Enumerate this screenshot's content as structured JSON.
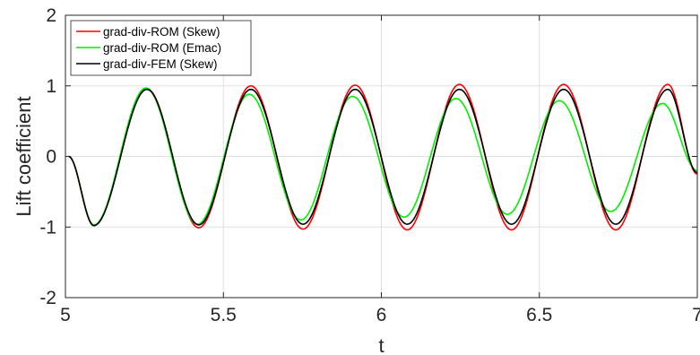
{
  "chart_data": {
    "type": "line",
    "title": "",
    "xlabel": "t",
    "ylabel": "Lift coefficient",
    "xlim": [
      5,
      7
    ],
    "ylim": [
      -2,
      2
    ],
    "xticks": [
      5,
      5.5,
      6,
      6.5,
      7
    ],
    "xtick_labels": [
      "5",
      "5.5",
      "6",
      "6.5",
      "7"
    ],
    "yticks": [
      -2,
      -1,
      0,
      1,
      2
    ],
    "ytick_labels": [
      "-2",
      "-1",
      "0",
      "1",
      "2"
    ],
    "grid": true,
    "legend_position": "top-left",
    "x": [
      5.0,
      5.1,
      5.2,
      5.3,
      5.4,
      5.5,
      5.6,
      5.7,
      5.8,
      5.9,
      6.0,
      6.1,
      6.2,
      6.3,
      6.4,
      6.5,
      6.6,
      6.7,
      6.8,
      6.9,
      7.0
    ],
    "series": [
      {
        "name": "grad-div-ROM (Skew)",
        "color": "#ff0000",
        "description_points": "sinusoid, period ~0.33, growing slightly to amplitude ~1.03",
        "x": [
          5.01,
          5.09,
          5.258,
          5.422,
          5.587,
          5.752,
          5.917,
          6.082,
          6.247,
          6.412,
          6.577,
          6.742,
          6.907,
          7.0
        ],
        "values": [
          0.0,
          -0.97,
          0.96,
          -1.01,
          1.0,
          -1.03,
          1.01,
          -1.04,
          1.02,
          -1.04,
          1.02,
          -1.04,
          1.02,
          -0.25
        ]
      },
      {
        "name": "grad-div-ROM (Emac)",
        "color": "#00ee00",
        "x": [
          5.01,
          5.09,
          5.255,
          5.418,
          5.582,
          5.745,
          5.909,
          6.072,
          6.236,
          6.399,
          6.563,
          6.726,
          6.89,
          7.0
        ],
        "values": [
          0.0,
          -0.97,
          0.97,
          -0.96,
          0.88,
          -0.9,
          0.85,
          -0.86,
          0.82,
          -0.82,
          0.79,
          -0.78,
          0.75,
          -0.2
        ]
      },
      {
        "name": "grad-div-FEM (Skew)",
        "color": "#000000",
        "x": [
          5.01,
          5.09,
          5.258,
          5.422,
          5.587,
          5.752,
          5.917,
          6.082,
          6.247,
          6.412,
          6.577,
          6.742,
          6.907,
          7.0
        ],
        "values": [
          0.0,
          -0.98,
          0.95,
          -0.97,
          0.95,
          -0.96,
          0.95,
          -0.96,
          0.95,
          -0.96,
          0.95,
          -0.96,
          0.95,
          -0.23
        ]
      }
    ]
  }
}
